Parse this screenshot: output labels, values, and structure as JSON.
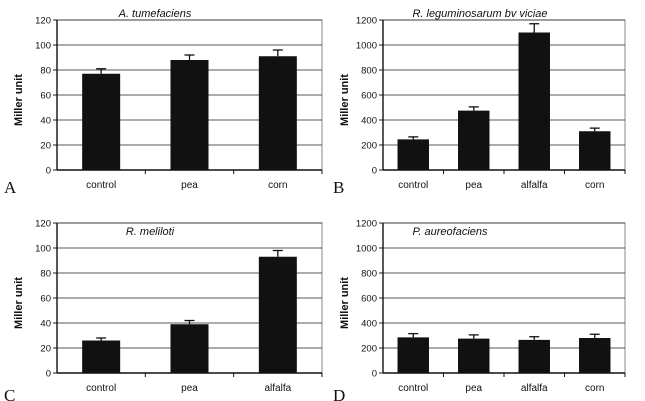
{
  "chart_data": [
    {
      "type": "bar",
      "panel": "A",
      "title": "A. tumefaciens",
      "ylabel": "Miller unit",
      "xlabel": "",
      "ylim": [
        0,
        120
      ],
      "yticks": [
        0,
        20,
        40,
        60,
        80,
        100,
        120
      ],
      "grid": true,
      "categories": [
        "control",
        "pea",
        "corn"
      ],
      "values": [
        77,
        88,
        91
      ],
      "errors": [
        4,
        4,
        5
      ],
      "color": "#111111"
    },
    {
      "type": "bar",
      "panel": "B",
      "title": "R. leguminosarum bv viciae",
      "ylabel": "Miller unit",
      "xlabel": "",
      "ylim": [
        0,
        1200
      ],
      "yticks": [
        0,
        200,
        400,
        600,
        800,
        1000,
        1200
      ],
      "grid": true,
      "categories": [
        "control",
        "pea",
        "alfalfa",
        "corn"
      ],
      "values": [
        245,
        475,
        1100,
        310
      ],
      "errors": [
        20,
        30,
        70,
        25
      ],
      "color": "#111111"
    },
    {
      "type": "bar",
      "panel": "C",
      "title": "R. meliloti",
      "ylabel": "Miller unit",
      "xlabel": "",
      "ylim": [
        0,
        120
      ],
      "yticks": [
        0,
        20,
        40,
        60,
        80,
        100,
        120
      ],
      "grid": true,
      "categories": [
        "control",
        "pea",
        "alfalfa"
      ],
      "values": [
        26,
        39,
        93
      ],
      "errors": [
        2,
        3,
        5
      ],
      "color": "#111111"
    },
    {
      "type": "bar",
      "panel": "D",
      "title": "P. aureofaciens",
      "ylabel": "Miller unit",
      "xlabel": "",
      "ylim": [
        0,
        1200
      ],
      "yticks": [
        0,
        200,
        400,
        600,
        800,
        1000,
        1200
      ],
      "grid": true,
      "categories": [
        "control",
        "pea",
        "alfalfa",
        "corn"
      ],
      "values": [
        285,
        275,
        265,
        280
      ],
      "errors": [
        30,
        30,
        25,
        30
      ],
      "color": "#111111"
    }
  ]
}
